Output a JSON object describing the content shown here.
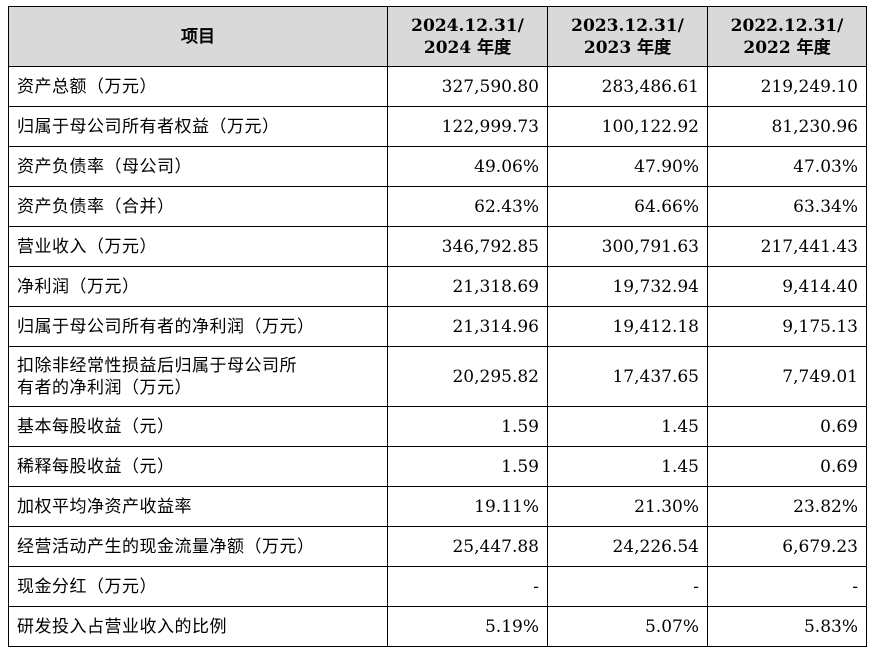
{
  "table": {
    "header": {
      "item": "项目",
      "cols": [
        {
          "line1": "2024.12.31/",
          "line2": "2024 年度"
        },
        {
          "line1": "2023.12.31/",
          "line2": "2023 年度"
        },
        {
          "line1": "2022.12.31/",
          "line2": "2022 年度"
        }
      ]
    },
    "rows": [
      {
        "item": "资产总额（万元）",
        "values": [
          "327,590.80",
          "283,486.61",
          "219,249.10"
        ]
      },
      {
        "item": "归属于母公司所有者权益（万元）",
        "values": [
          "122,999.73",
          "100,122.92",
          "81,230.96"
        ]
      },
      {
        "item": "资产负债率（母公司）",
        "values": [
          "49.06%",
          "47.90%",
          "47.03%"
        ]
      },
      {
        "item": "资产负债率（合并）",
        "values": [
          "62.43%",
          "64.66%",
          "63.34%"
        ]
      },
      {
        "item": "营业收入（万元）",
        "values": [
          "346,792.85",
          "300,791.63",
          "217,441.43"
        ]
      },
      {
        "item": "净利润（万元）",
        "values": [
          "21,318.69",
          "19,732.94",
          "9,414.40"
        ]
      },
      {
        "item": "归属于母公司所有者的净利润（万元）",
        "values": [
          "21,314.96",
          "19,412.18",
          "9,175.13"
        ]
      },
      {
        "item": "扣除非经常性损益后归属于母公司所有者的净利润（万元）",
        "item_line1": "扣除非经常性损益后归属于母公司所",
        "item_line2": "有者的净利润（万元）",
        "values": [
          "20,295.82",
          "17,437.65",
          "7,749.01"
        ]
      },
      {
        "item": "基本每股收益（元）",
        "values": [
          "1.59",
          "1.45",
          "0.69"
        ]
      },
      {
        "item": "稀释每股收益（元）",
        "values": [
          "1.59",
          "1.45",
          "0.69"
        ]
      },
      {
        "item": "加权平均净资产收益率",
        "values": [
          "19.11%",
          "21.30%",
          "23.82%"
        ]
      },
      {
        "item": "经营活动产生的现金流量净额（万元）",
        "values": [
          "25,447.88",
          "24,226.54",
          "6,679.23"
        ]
      },
      {
        "item": "现金分红（万元）",
        "values": [
          "-",
          "-",
          "-"
        ]
      },
      {
        "item": "研发投入占营业收入的比例",
        "values": [
          "5.19%",
          "5.07%",
          "5.83%"
        ]
      }
    ]
  }
}
